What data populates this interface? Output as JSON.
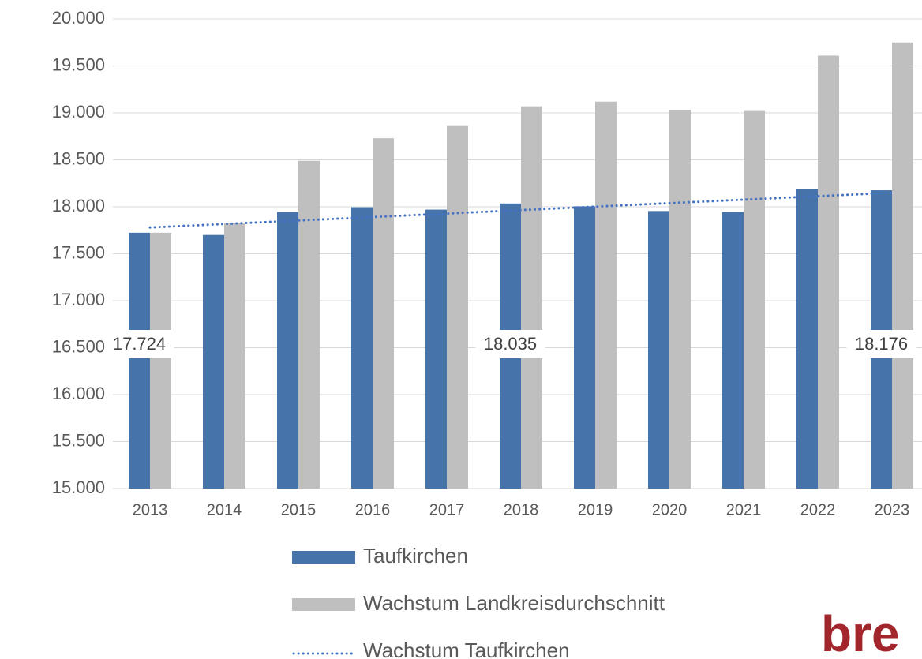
{
  "chart_data": {
    "type": "bar",
    "categories": [
      "2013",
      "2014",
      "2015",
      "2016",
      "2017",
      "2018",
      "2019",
      "2020",
      "2021",
      "2022",
      "2023"
    ],
    "series": [
      {
        "name": "Taufkirchen",
        "color": "#4674aa",
        "values": [
          17724,
          17700,
          17945,
          17995,
          17970,
          18035,
          18005,
          17955,
          17945,
          18185,
          18176
        ],
        "value_labels": [
          "17.724",
          null,
          null,
          null,
          null,
          "18.035",
          null,
          null,
          null,
          null,
          "18.176"
        ]
      },
      {
        "name": "Wachstum Landkreisdurchschnitt",
        "color": "#bfbfbf",
        "values": [
          17724,
          17830,
          18490,
          18730,
          18860,
          19070,
          19120,
          19030,
          19020,
          19610,
          19750
        ]
      },
      {
        "name": "Wachstum Taufkirchen",
        "type": "line",
        "style": "dotted",
        "color": "#4472c4",
        "values": [
          17780,
          17817,
          17854,
          17891,
          17928,
          17965,
          18002,
          18039,
          18076,
          18113,
          18150
        ]
      }
    ],
    "ylim": [
      15000,
      20000
    ],
    "yticks": [
      {
        "value": 15000,
        "label": "15.000"
      },
      {
        "value": 15500,
        "label": "15.500"
      },
      {
        "value": 16000,
        "label": "16.000"
      },
      {
        "value": 16500,
        "label": "16.500"
      },
      {
        "value": 17000,
        "label": "17.000"
      },
      {
        "value": 17500,
        "label": "17.500"
      },
      {
        "value": 18000,
        "label": "18.000"
      },
      {
        "value": 18500,
        "label": "18.500"
      },
      {
        "value": 19000,
        "label": "19.000"
      },
      {
        "value": 19500,
        "label": "19.500"
      },
      {
        "value": 20000,
        "label": "20.000"
      }
    ],
    "grid": true,
    "legend": "bottom",
    "logo": "bre"
  }
}
